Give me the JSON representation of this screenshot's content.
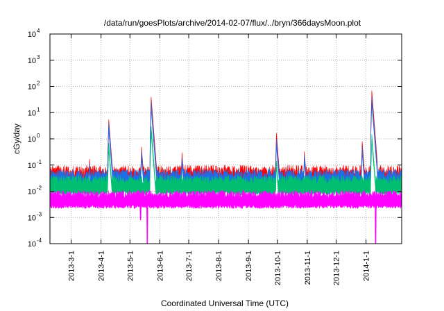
{
  "chart_data": {
    "type": "line",
    "title": "/data/run/goesPlots/archive/2014-02-07/flux/../bryn/366daysMoon.plot",
    "xlabel": "Coordinated Universal Time (UTC)",
    "ylabel": "cGy/day",
    "x_range": [
      "2013-02-07",
      "2014-02-07"
    ],
    "ylim": [
      0.0001,
      10000
    ],
    "y_scale": "log",
    "grid": true,
    "x_ticks": [
      {
        "date": "2013-3-1",
        "label": "2013-3-1"
      },
      {
        "date": "2013-4-1",
        "label": "2013-4-1"
      },
      {
        "date": "2013-5-1",
        "label": "2013-5-1"
      },
      {
        "date": "2013-6-1",
        "label": "2013-6-1"
      },
      {
        "date": "2013-7-1",
        "label": "2013-7-1"
      },
      {
        "date": "2013-8-1",
        "label": "2013-8-1"
      },
      {
        "date": "2013-9-1",
        "label": "2013-9-1"
      },
      {
        "date": "2013-10-1",
        "label": "2013-10-1"
      },
      {
        "date": "2013-11-1",
        "label": "2013-11-1"
      },
      {
        "date": "2013-12-1",
        "label": "2013-12-1"
      },
      {
        "date": "2014-1-1",
        "label": "2014-1-1"
      }
    ],
    "y_ticks": [
      {
        "value": 0.0001,
        "base": "10",
        "exp": "-4"
      },
      {
        "value": 0.001,
        "base": "10",
        "exp": "-3"
      },
      {
        "value": 0.01,
        "base": "10",
        "exp": "-2"
      },
      {
        "value": 0.1,
        "base": "10",
        "exp": "-1"
      },
      {
        "value": 1,
        "base": "10",
        "exp": "0"
      },
      {
        "value": 10,
        "base": "10",
        "exp": "1"
      },
      {
        "value": 100,
        "base": "10",
        "exp": "2"
      },
      {
        "value": 1000,
        "base": "10",
        "exp": "3"
      },
      {
        "value": 10000,
        "base": "10",
        "exp": "4"
      }
    ],
    "series": [
      {
        "color": "#ff0000",
        "baseline": 0.035,
        "spread": 0.45,
        "events": [
          {
            "date": "2013-03-20",
            "peak": 0.17
          },
          {
            "date": "2013-04-09",
            "peak": 5.5
          },
          {
            "date": "2013-05-13",
            "peak": 0.5
          },
          {
            "date": "2013-05-23",
            "peak": 40
          },
          {
            "date": "2013-06-24",
            "peak": 0.3
          },
          {
            "date": "2013-09-30",
            "peak": 1.7
          },
          {
            "date": "2013-10-29",
            "peak": 0.33
          },
          {
            "date": "2013-12-28",
            "peak": 0.8
          },
          {
            "date": "2014-01-07",
            "peak": 70
          }
        ]
      },
      {
        "color": "#1e6ee8",
        "baseline": 0.028,
        "spread": 0.4,
        "events": [
          {
            "date": "2013-03-20",
            "peak": 0.12
          },
          {
            "date": "2013-04-09",
            "peak": 4.0
          },
          {
            "date": "2013-05-13",
            "peak": 0.35
          },
          {
            "date": "2013-05-23",
            "peak": 25
          },
          {
            "date": "2013-06-24",
            "peak": 0.2
          },
          {
            "date": "2013-09-30",
            "peak": 1.0
          },
          {
            "date": "2013-10-29",
            "peak": 0.25
          },
          {
            "date": "2013-12-28",
            "peak": 0.5
          },
          {
            "date": "2014-01-07",
            "peak": 40
          }
        ]
      },
      {
        "color": "#00c070",
        "baseline": 0.018,
        "spread": 0.35,
        "events": [
          {
            "date": "2013-04-09",
            "peak": 0.7
          },
          {
            "date": "2013-05-23",
            "peak": 3.0
          },
          {
            "date": "2013-09-30",
            "peak": 0.15
          },
          {
            "date": "2014-01-07",
            "peak": 1.5
          }
        ]
      },
      {
        "color": "#ff00ff",
        "baseline": 0.0055,
        "spread": 0.3,
        "events": [],
        "dips": [
          {
            "date": "2013-04-09",
            "value": 0.0035
          },
          {
            "date": "2013-05-12",
            "value": 0.0008
          },
          {
            "date": "2013-05-19",
            "value": 0.0001
          },
          {
            "date": "2014-01-11",
            "value": 0.0001
          }
        ]
      }
    ]
  }
}
